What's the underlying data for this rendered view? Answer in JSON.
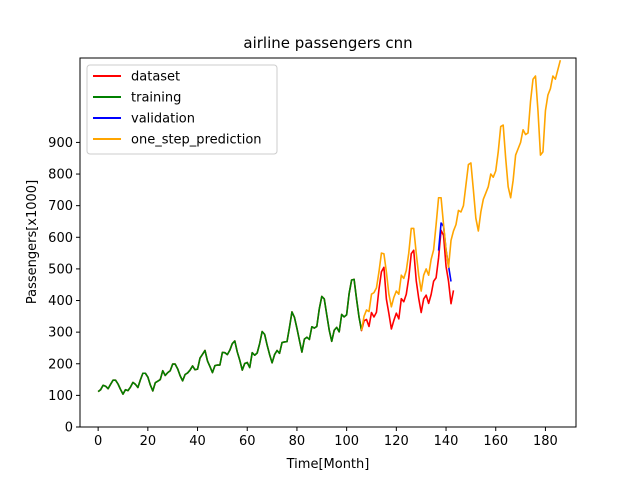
{
  "chart_data": {
    "type": "line",
    "title": "airline passengers cnn",
    "xlabel": "Time[Month]",
    "ylabel": "Passengers[x1000]",
    "xlim": [
      -7.3,
      192.3
    ],
    "ylim": [
      0,
      1167
    ],
    "xticks": [
      0,
      20,
      40,
      60,
      80,
      100,
      120,
      140,
      160,
      180
    ],
    "yticks": [
      0,
      100,
      200,
      300,
      400,
      500,
      600,
      700,
      800,
      900
    ],
    "grid": false,
    "legend_position": "top-left",
    "series": [
      {
        "name": "dataset",
        "color": "#ff0000",
        "x_start": 0,
        "values": [
          112,
          118,
          132,
          129,
          121,
          135,
          148,
          148,
          136,
          119,
          104,
          118,
          115,
          126,
          141,
          135,
          125,
          149,
          170,
          170,
          158,
          133,
          114,
          140,
          145,
          150,
          178,
          163,
          172,
          178,
          199,
          199,
          184,
          162,
          146,
          166,
          171,
          180,
          193,
          181,
          183,
          218,
          230,
          242,
          209,
          191,
          172,
          194,
          196,
          196,
          236,
          235,
          229,
          243,
          264,
          272,
          237,
          211,
          180,
          201,
          204,
          188,
          235,
          227,
          234,
          264,
          302,
          293,
          259,
          229,
          203,
          229,
          242,
          233,
          267,
          269,
          270,
          315,
          364,
          347,
          312,
          274,
          237,
          278,
          284,
          277,
          317,
          313,
          318,
          374,
          413,
          405,
          355,
          306,
          271,
          306,
          315,
          301,
          356,
          348,
          355,
          422,
          465,
          467,
          404,
          347,
          305,
          336,
          340,
          318,
          362,
          348,
          363,
          435,
          491,
          505,
          404,
          359,
          310,
          337,
          360,
          342,
          406,
          396,
          420,
          472,
          548,
          559,
          463,
          407,
          362,
          405,
          417,
          391,
          419,
          461,
          472,
          535,
          622,
          606,
          508,
          461,
          390,
          432
        ]
      },
      {
        "name": "training",
        "color": "#008000",
        "x_start": 0,
        "values": [
          112,
          118,
          132,
          129,
          121,
          135,
          148,
          148,
          136,
          119,
          104,
          118,
          115,
          126,
          141,
          135,
          125,
          149,
          170,
          170,
          158,
          133,
          114,
          140,
          145,
          150,
          178,
          163,
          172,
          178,
          199,
          199,
          184,
          162,
          146,
          166,
          171,
          180,
          193,
          181,
          183,
          218,
          230,
          242,
          209,
          191,
          172,
          194,
          196,
          196,
          236,
          235,
          229,
          243,
          264,
          272,
          237,
          211,
          180,
          201,
          204,
          188,
          235,
          227,
          234,
          264,
          302,
          293,
          259,
          229,
          203,
          229,
          242,
          233,
          267,
          269,
          270,
          315,
          364,
          347,
          312,
          274,
          237,
          278,
          284,
          277,
          317,
          313,
          318,
          374,
          413,
          405,
          355,
          306,
          271,
          306,
          315,
          301,
          356,
          348,
          355,
          422,
          465,
          467,
          404,
          347,
          305
        ]
      },
      {
        "name": "validation",
        "color": "#0000ff",
        "x_start": 137,
        "values": [
          558,
          645,
          635,
          560,
          510,
          460
        ]
      },
      {
        "name": "one_step_prediction",
        "color": "#ffa500",
        "x_start": 106,
        "values": [
          305,
          350,
          370,
          365,
          420,
          425,
          440,
          490,
          550,
          548,
          490,
          420,
          380,
          410,
          430,
          420,
          480,
          470,
          495,
          550,
          628,
          628,
          550,
          480,
          430,
          480,
          500,
          480,
          530,
          560,
          640,
          725,
          725,
          640,
          560,
          505,
          590,
          620,
          640,
          685,
          680,
          700,
          765,
          830,
          835,
          750,
          660,
          620,
          680,
          720,
          740,
          760,
          800,
          790,
          810,
          870,
          950,
          955,
          850,
          760,
          725,
          780,
          860,
          880,
          900,
          940,
          925,
          930,
          1030,
          1100,
          1110,
          1000,
          860,
          870,
          1000,
          1050,
          1070,
          1110,
          1100,
          1130,
          1160
        ]
      }
    ]
  }
}
